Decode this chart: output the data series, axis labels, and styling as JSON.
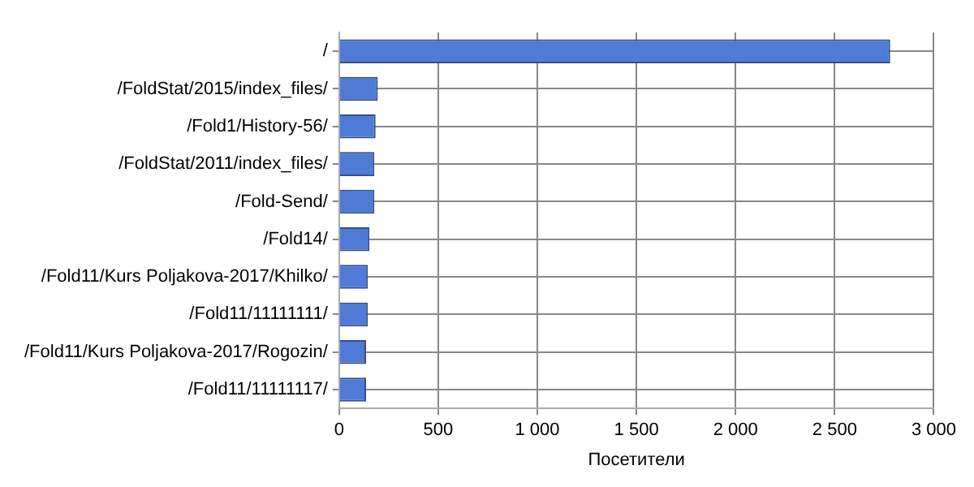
{
  "chart_data": {
    "type": "bar",
    "orientation": "horizontal",
    "xlabel": "Посетители",
    "categories": [
      "/",
      "/FoldStat/2015/index_files/",
      "/Fold1/History-56/",
      "/FoldStat/2011/index_files/",
      "/Fold-Send/",
      "/Fold14/",
      "/Fold11/Kurs Poljakova-2017/Khilko/",
      "/Fold11/11111111/",
      "/Fold11/Kurs Poljakova-2017/Rogozin/",
      "/Fold11/11111117/"
    ],
    "values": [
      2780,
      195,
      184,
      178,
      178,
      153,
      145,
      145,
      136,
      136
    ],
    "color": "#4f7ad6",
    "xlim": [
      0,
      3000
    ],
    "xticks": [
      {
        "value": 0,
        "label": "0"
      },
      {
        "value": 500,
        "label": "500"
      },
      {
        "value": 1000,
        "label": "1 000"
      },
      {
        "value": 1500,
        "label": "1 500"
      },
      {
        "value": 2000,
        "label": "2 000"
      },
      {
        "value": 2500,
        "label": "2 500"
      },
      {
        "value": 3000,
        "label": "3 000"
      }
    ],
    "grid": true,
    "legend": false
  }
}
